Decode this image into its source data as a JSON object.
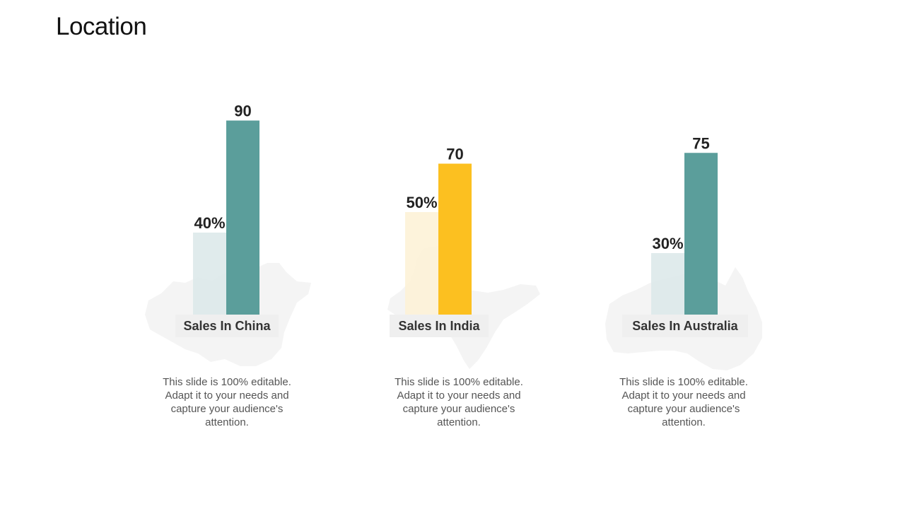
{
  "title": "Location",
  "chart_data": {
    "type": "bar",
    "value_axis_max": 100,
    "groups": [
      {
        "category": "Sales In China",
        "percent_label": "40%",
        "percent_value": 40,
        "value_label": "90",
        "value": 90,
        "bar_color": "#5b9e9b",
        "tint_color": "#dde9ea",
        "description": "This slide is 100% editable. Adapt it to your needs and capture your audience's attention."
      },
      {
        "category": "Sales In India",
        "percent_label": "50%",
        "percent_value": 50,
        "value_label": "70",
        "value": 70,
        "bar_color": "#fcc020",
        "tint_color": "#fdf2d7",
        "description": "This slide is 100% editable. Adapt it to your needs and capture your audience's attention."
      },
      {
        "category": "Sales In Australia",
        "percent_label": "30%",
        "percent_value": 30,
        "value_label": "75",
        "value": 75,
        "bar_color": "#5b9e9b",
        "tint_color": "#dde9ea",
        "description": "This slide is 100% editable. Adapt it to your needs and capture your audience's attention."
      }
    ]
  }
}
